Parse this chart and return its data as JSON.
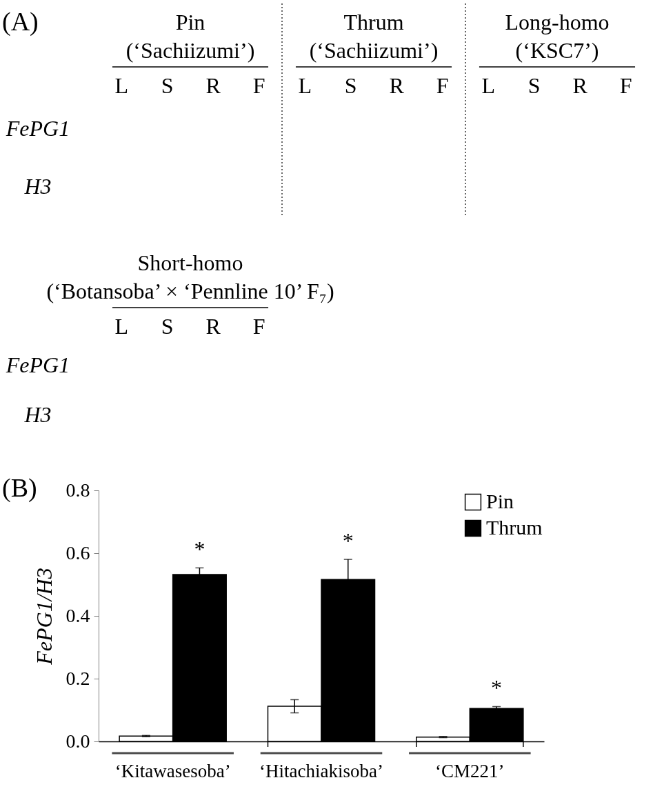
{
  "chart_data": [
    {
      "type": "other",
      "title": "(A)",
      "categories": [
        "L",
        "S",
        "R",
        "F",
        "L",
        "S",
        "R",
        "F",
        "L",
        "S",
        "R",
        "F"
      ],
      "y_categories": [
        "FePG1",
        "H3"
      ],
      "annotations": [
        "Pin",
        "(‘Sachiizumi’)",
        "Thrum",
        "(‘Sachiizumi’)",
        "Long-homo",
        "(‘KSC7’)"
      ]
    },
    {
      "type": "other",
      "categories": [
        "L",
        "S",
        "R",
        "F"
      ],
      "y_categories": [
        "FePG1",
        "H3"
      ],
      "annotations": [
        "Short-homo",
        "(‘Botansoba’ × ‘Pennline 10’ F₇)"
      ]
    },
    {
      "type": "bar",
      "title": "(B)",
      "ylabel": "FePG1/H3",
      "categories": [
        "‘Kitawasesoba’",
        "‘Hitachiakisoba’",
        "‘CM221’"
      ],
      "series": [
        {
          "name": "Pin",
          "color": "#ffffff",
          "values": [
            0.017,
            0.112,
            0.014
          ],
          "errors": [
            0.002,
            0.021,
            0.002
          ]
        },
        {
          "name": "Thrum",
          "color": "#000000",
          "values": [
            0.532,
            0.516,
            0.105
          ],
          "errors": [
            0.021,
            0.064,
            0.006
          ],
          "value_labels": [
            "*",
            "*",
            "*"
          ]
        }
      ],
      "ylim": [
        0,
        0.8
      ],
      "yticks": [
        {
          "value": 0,
          "label": "0.0"
        },
        0.2,
        0.4,
        0.6,
        0.8
      ],
      "legend": "top right"
    }
  ]
}
